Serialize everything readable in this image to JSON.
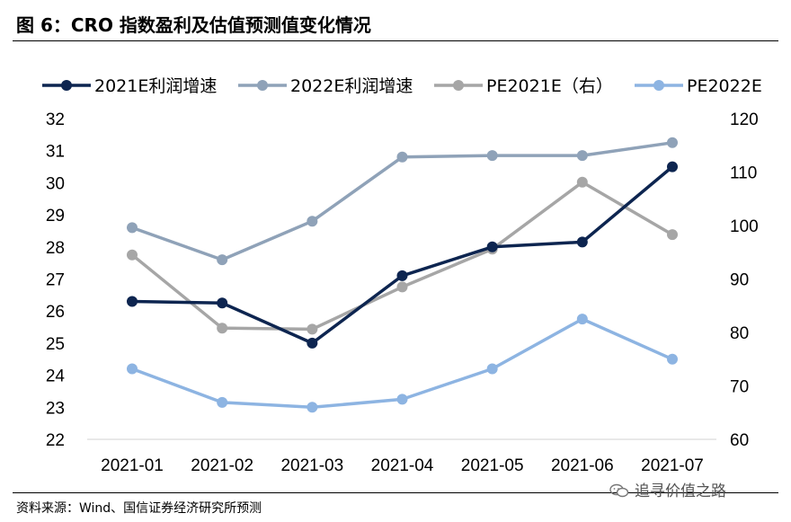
{
  "title": "图 6：CRO 指数盈利及估值预测值变化情况",
  "source": "资料来源：Wind、国信证券经济研究所预测",
  "watermark": "追寻价值之路",
  "watermark_icon": "wechat-icon",
  "chart_data": {
    "type": "line",
    "categories": [
      "2021-01",
      "2021-02",
      "2021-03",
      "2021-04",
      "2021-05",
      "2021-06",
      "2021-07"
    ],
    "y_left": {
      "ticks": [
        22,
        23,
        24,
        25,
        26,
        27,
        28,
        29,
        30,
        31,
        32
      ],
      "range": [
        22,
        32
      ]
    },
    "y_right": {
      "ticks": [
        60,
        70,
        80,
        90,
        100,
        110,
        120
      ],
      "range": [
        60,
        120
      ]
    },
    "grid": false,
    "legend_position": "top",
    "series": [
      {
        "name": "2021E利润增速",
        "axis": "left",
        "color": "#0d2550",
        "values": [
          26.3,
          26.25,
          25.0,
          27.1,
          28.0,
          28.15,
          30.5
        ]
      },
      {
        "name": "2022E利润增速",
        "axis": "left",
        "color": "#8fa2b8",
        "values": [
          28.6,
          27.6,
          28.8,
          30.8,
          30.85,
          30.85,
          31.25
        ]
      },
      {
        "name": "PE2021E（右）",
        "axis": "right",
        "color": "#a6a6a6",
        "values": [
          94.5,
          80.8,
          80.6,
          88.5,
          95.6,
          108.1,
          98.3
        ]
      },
      {
        "name": "PE2022E",
        "axis": "left",
        "color": "#8db4e2",
        "values": [
          24.2,
          23.15,
          23.0,
          23.25,
          24.2,
          25.75,
          24.5
        ]
      }
    ]
  }
}
